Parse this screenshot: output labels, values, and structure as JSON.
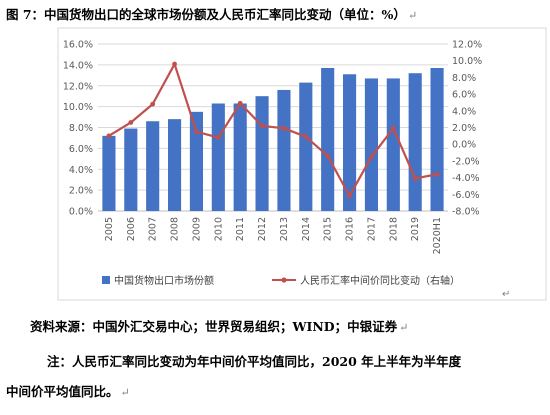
{
  "title": "图 7：中国货物出口的全球市场份额及人民币汇率同比变动（单位：%）",
  "return_mark": "↵",
  "chart_data": {
    "type": "bar+line",
    "categories": [
      "2005",
      "2006",
      "2007",
      "2008",
      "2009",
      "2010",
      "2011",
      "2012",
      "2013",
      "2014",
      "2015",
      "2016",
      "2017",
      "2018",
      "2019",
      "2020H1"
    ],
    "series": [
      {
        "name": "中国货物出口市场份额",
        "type": "bar",
        "axis": "left",
        "values": [
          7.2,
          7.9,
          8.6,
          8.8,
          9.5,
          10.3,
          10.3,
          11.0,
          11.6,
          12.3,
          13.7,
          13.1,
          12.7,
          12.7,
          13.2,
          13.7
        ]
      },
      {
        "name": "人民币汇率中间价同比变动（右轴）",
        "type": "line",
        "axis": "right",
        "values": [
          1.0,
          2.6,
          4.8,
          9.6,
          1.5,
          0.8,
          4.9,
          2.2,
          1.9,
          0.9,
          -1.4,
          -6.2,
          -1.5,
          1.9,
          -4.1,
          -3.6
        ]
      }
    ],
    "left_axis": {
      "min": 0,
      "max": 16,
      "step": 2,
      "tick_labels": [
        "0.0%",
        "2.0%",
        "4.0%",
        "6.0%",
        "8.0%",
        "10.0%",
        "12.0%",
        "14.0%",
        "16.0%"
      ]
    },
    "right_axis": {
      "min": -8,
      "max": 12,
      "step": 2,
      "tick_labels": [
        "-8.0%",
        "-6.0%",
        "-4.0%",
        "-2.0%",
        "0.0%",
        "2.0%",
        "4.0%",
        "6.0%",
        "8.0%",
        "10.0%",
        "12.0%"
      ]
    },
    "colors": {
      "bar": "#4472C4",
      "line": "#C0504D",
      "grid": "#D9D9D9",
      "axis": "#BFBFBF"
    },
    "grid": true,
    "legend_position": "bottom"
  },
  "source": "资料来源：中国外汇交易中心；世界贸易组织；WIND；中银证券",
  "note_line1": "注：人民币汇率同比变动为年中间价平均值同比，2020 年上半年为半年度",
  "note_line2": "中间价平均值同比。"
}
